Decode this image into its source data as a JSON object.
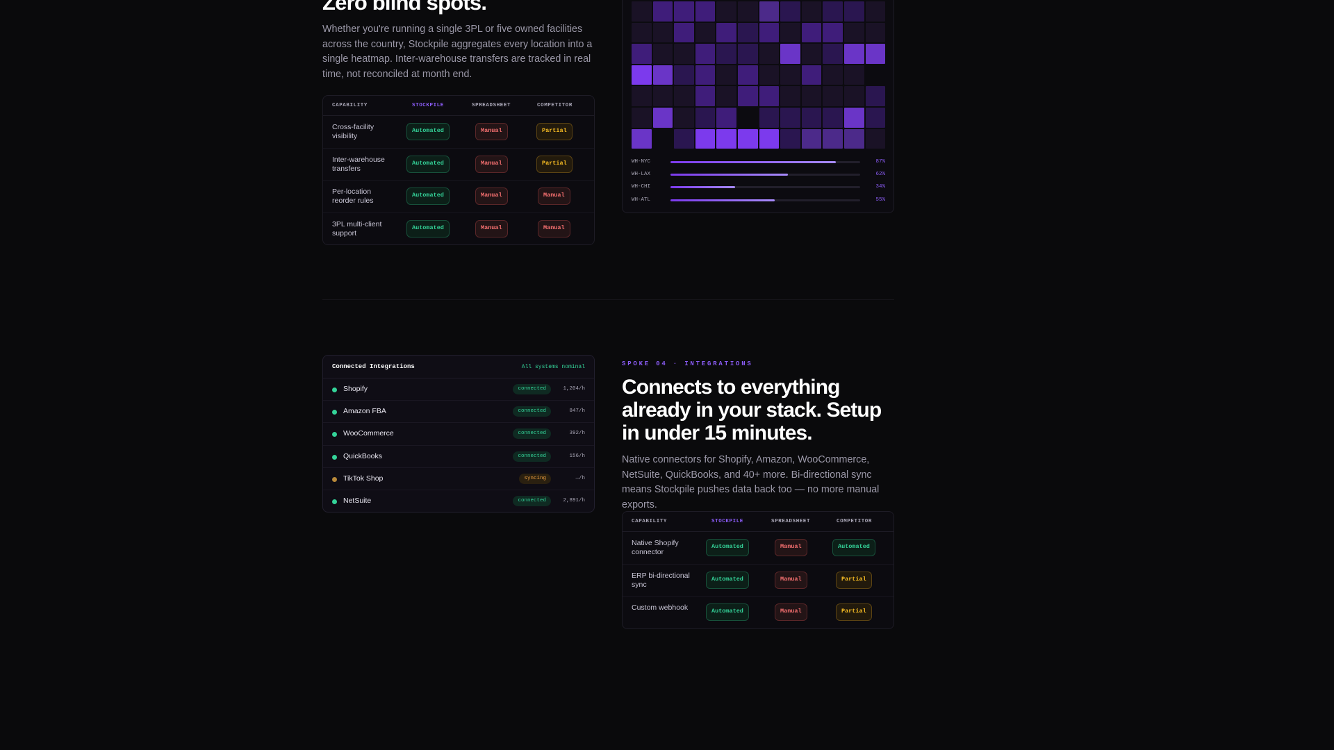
{
  "section1": {
    "heading": "Zero blind spots.",
    "body": "Whether you're running a single 3PL or five owned facilities across the country, Stockpile aggregates every location into a single heatmap. Inter-warehouse transfers are tracked in real time, not reconciled at month end.",
    "table": {
      "headers": [
        "CAPABILITY",
        "STOCKPILE",
        "SPREADSHEET",
        "COMPETITOR"
      ],
      "rows": [
        {
          "capability": "Cross-facility visibility",
          "stockpile": "Automated",
          "spreadsheet": "Manual",
          "competitor": "Partial"
        },
        {
          "capability": "Inter-warehouse transfers",
          "stockpile": "Automated",
          "spreadsheet": "Manual",
          "competitor": "Partial"
        },
        {
          "capability": "Per-location reorder rules",
          "stockpile": "Automated",
          "spreadsheet": "Manual",
          "competitor": "Manual"
        },
        {
          "capability": "3PL multi-client support",
          "stockpile": "Automated",
          "spreadsheet": "Manual",
          "competitor": "Manual"
        }
      ]
    },
    "heatmap": {
      "levels": [
        [
          1,
          3,
          3,
          3,
          1,
          1,
          4,
          2,
          1,
          2,
          2,
          1
        ],
        [
          1,
          1,
          3,
          1,
          3,
          2,
          3,
          1,
          3,
          3,
          1,
          1
        ],
        [
          3,
          1,
          1,
          3,
          2,
          2,
          1,
          5,
          1,
          2,
          5,
          5
        ],
        [
          6,
          5,
          2,
          3,
          1,
          3,
          1,
          1,
          3,
          1,
          1,
          0
        ],
        [
          1,
          1,
          1,
          3,
          1,
          3,
          3,
          1,
          1,
          1,
          1,
          2
        ],
        [
          1,
          5,
          1,
          2,
          3,
          0,
          2,
          2,
          2,
          2,
          5,
          2
        ],
        [
          5,
          0,
          2,
          6,
          6,
          6,
          6,
          2,
          4,
          4,
          4,
          1
        ]
      ],
      "palette": [
        "#0c0b10",
        "#1a1226",
        "#2a1650",
        "#3f1d7a",
        "#4c2a8a",
        "#6a35c7",
        "#7c3aed"
      ],
      "bars": [
        {
          "label": "WH-NYC",
          "value": 87,
          "display": "87%"
        },
        {
          "label": "WH-LAX",
          "value": 62,
          "display": "62%"
        },
        {
          "label": "WH-CHI",
          "value": 34,
          "display": "34%"
        },
        {
          "label": "WH-ATL",
          "value": 55,
          "display": "55%"
        }
      ]
    }
  },
  "section2": {
    "eyebrow": "SPOKE 04 · INTEGRATIONS",
    "heading": "Connects to everything already in your stack. Setup in under 15 minutes.",
    "body": "Native connectors for Shopify, Amazon, WooCommerce, NetSuite, QuickBooks, and 40+ more. Bi-directional sync means Stockpile pushes data back too — no more manual exports.",
    "integrations": {
      "title": "Connected Integrations",
      "status": "All systems nominal",
      "items": [
        {
          "name": "Shopify",
          "state": "connected",
          "rate": "1,204/h",
          "color": "#34d399"
        },
        {
          "name": "Amazon FBA",
          "state": "connected",
          "rate": "847/h",
          "color": "#34d399"
        },
        {
          "name": "WooCommerce",
          "state": "connected",
          "rate": "392/h",
          "color": "#34d399"
        },
        {
          "name": "QuickBooks",
          "state": "connected",
          "rate": "156/h",
          "color": "#34d399"
        },
        {
          "name": "TikTok Shop",
          "state": "syncing",
          "rate": "—/h",
          "color": "#b8893a"
        },
        {
          "name": "NetSuite",
          "state": "connected",
          "rate": "2,891/h",
          "color": "#34d399"
        }
      ]
    },
    "table": {
      "headers": [
        "CAPABILITY",
        "STOCKPILE",
        "SPREADSHEET",
        "COMPETITOR"
      ],
      "rows": [
        {
          "capability": "Native Shopify connector",
          "stockpile": "Automated",
          "spreadsheet": "Manual",
          "competitor": "Automated"
        },
        {
          "capability": "ERP bi-directional sync",
          "stockpile": "Automated",
          "spreadsheet": "Manual",
          "competitor": "Partial"
        },
        {
          "capability": "Custom webhook",
          "stockpile": "Automated",
          "spreadsheet": "Manual",
          "competitor": "Partial"
        }
      ]
    }
  }
}
